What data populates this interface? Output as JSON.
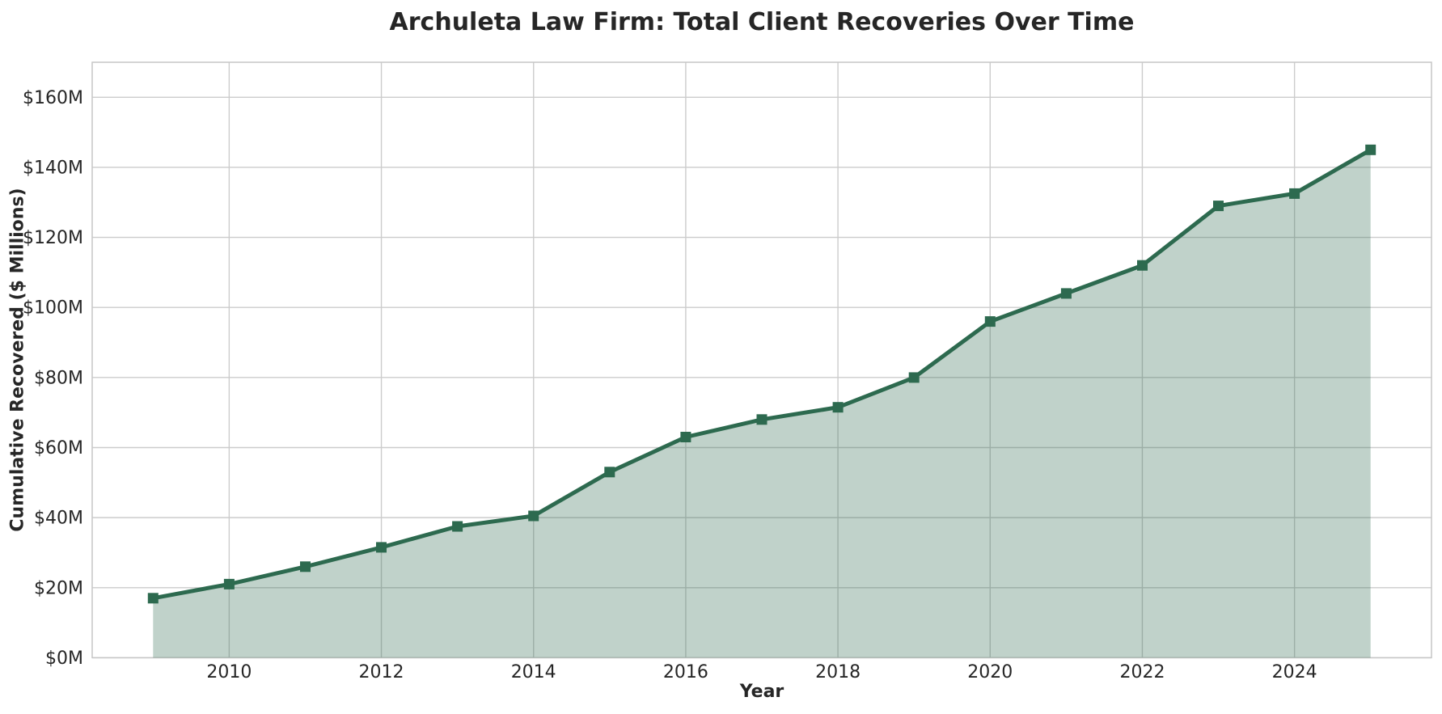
{
  "figure": {
    "background": "#ffffff"
  },
  "chart_data": {
    "type": "area",
    "title": "Archuleta Law Firm: Total Client Recoveries Over Time",
    "xlabel": "Year",
    "ylabel": "Cumulative Recovered ($ Millions)",
    "series": [
      {
        "name": "Cumulative recovered ($ millions)",
        "x": [
          2009,
          2010,
          2011,
          2012,
          2013,
          2014,
          2015,
          2016,
          2017,
          2018,
          2019,
          2020,
          2021,
          2022,
          2023,
          2024,
          2025
        ],
        "y": [
          17,
          21,
          26,
          31.5,
          37.5,
          40.5,
          53,
          63,
          68,
          71.5,
          80,
          96,
          104,
          112,
          129,
          132.5,
          145
        ]
      }
    ],
    "xlim": [
      2008.2,
      2025.8
    ],
    "ylim": [
      0,
      170
    ],
    "x_ticks": [
      2010,
      2012,
      2014,
      2016,
      2018,
      2020,
      2022,
      2024
    ],
    "x_tick_labels": [
      "2010",
      "2012",
      "2014",
      "2016",
      "2018",
      "2020",
      "2022",
      "2024"
    ],
    "y_ticks": [
      0,
      20,
      40,
      60,
      80,
      100,
      120,
      140,
      160
    ],
    "y_tick_labels": [
      "$0M",
      "$20M",
      "$40M",
      "$60M",
      "$80M",
      "$100M",
      "$120M",
      "$140M",
      "$160M"
    ],
    "grid": true,
    "legend": false,
    "marker": "square",
    "line_width": 5,
    "marker_size": 13,
    "colors": {
      "line": "#2d6a4f",
      "fill": "rgba(45,106,79,0.30)",
      "grid": "#cccccc",
      "spine": "#c6c6c6",
      "text": "#262626"
    }
  }
}
